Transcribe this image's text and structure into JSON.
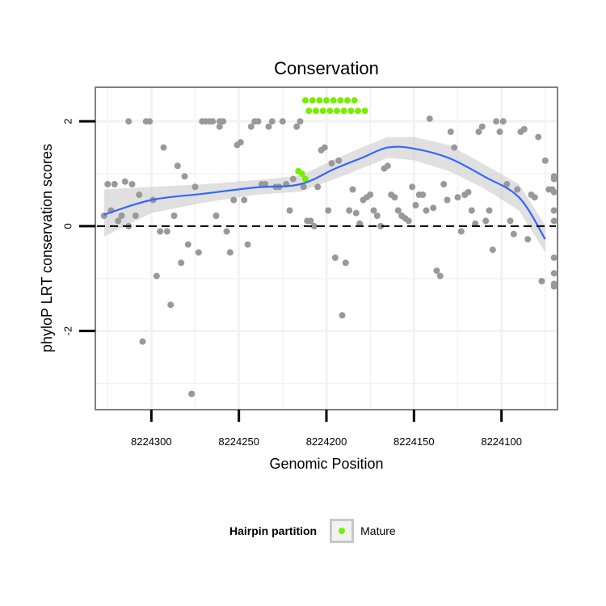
{
  "colors": {
    "points": "#999999",
    "mature": "#77ee00",
    "smooth": "#3366ff",
    "ribbon": "#cccccc",
    "panel_border": "#7f7f7f",
    "grid": "#f2f2f2"
  },
  "chart_data": {
    "type": "scatter",
    "title": "Conservation",
    "xlabel": "Genomic Position",
    "ylabel": "phyloP LRT conservation scores",
    "x_reversed": true,
    "xlim": [
      8224332,
      8224068
    ],
    "ylim": [
      -3.5,
      2.65
    ],
    "x_ticks": [
      8224300,
      8224250,
      8224200,
      8224150,
      8224100
    ],
    "x_tick_labels": [
      "8224300",
      "8224250",
      "8224200",
      "8224150",
      "8224100"
    ],
    "y_ticks": [
      2,
      0,
      -2
    ],
    "y_tick_labels": [
      "2",
      "0",
      "-2"
    ],
    "reference_line": {
      "y": 0,
      "style": "dashed"
    },
    "grid": true,
    "legend_position": "bottom",
    "legend": {
      "title": "Hairpin partition",
      "entries": [
        {
          "label": "Mature",
          "color": "#77ee00"
        }
      ]
    },
    "series": [
      {
        "kind": "points",
        "color": "#999999",
        "points": [
          [
            8224327,
            0.2
          ],
          [
            8224325,
            0.8
          ],
          [
            8224323,
            0.3
          ],
          [
            8224321,
            0.8
          ],
          [
            8224319,
            0.1
          ],
          [
            8224317,
            0.2
          ],
          [
            8224315,
            0.85
          ],
          [
            8224313,
            0.0
          ],
          [
            8224313,
            2.0
          ],
          [
            8224311,
            0.8
          ],
          [
            8224309,
            0.2
          ],
          [
            8224307,
            0.6
          ],
          [
            8224305,
            -2.2
          ],
          [
            8224303,
            2.0
          ],
          [
            8224301,
            2.0
          ],
          [
            8224299,
            0.5
          ],
          [
            8224297,
            -0.95
          ],
          [
            8224295,
            -0.1
          ],
          [
            8224293,
            1.5
          ],
          [
            8224291,
            -0.1
          ],
          [
            8224289,
            -1.5
          ],
          [
            8224287,
            0.2
          ],
          [
            8224285,
            1.15
          ],
          [
            8224283,
            -0.7
          ],
          [
            8224281,
            0.95
          ],
          [
            8224279,
            -0.35
          ],
          [
            8224277,
            -3.2
          ],
          [
            8224275,
            0.75
          ],
          [
            8224273,
            -0.5
          ],
          [
            8224271,
            2.0
          ],
          [
            8224269,
            2.0
          ],
          [
            8224267,
            2.0
          ],
          [
            8224265,
            2.0
          ],
          [
            8224263,
            0.2
          ],
          [
            8224261,
            1.9
          ],
          [
            8224261,
            2.0
          ],
          [
            8224259,
            2.0
          ],
          [
            8224257,
            -0.1
          ],
          [
            8224255,
            -0.5
          ],
          [
            8224253,
            0.5
          ],
          [
            8224251,
            1.55
          ],
          [
            8224249,
            1.6
          ],
          [
            8224247,
            0.5
          ],
          [
            8224245,
            -0.35
          ],
          [
            8224243,
            1.9
          ],
          [
            8224241,
            2.0
          ],
          [
            8224239,
            2.0
          ],
          [
            8224237,
            0.8
          ],
          [
            8224235,
            0.8
          ],
          [
            8224233,
            1.9
          ],
          [
            8224231,
            2.0
          ],
          [
            8224229,
            0.75
          ],
          [
            8224227,
            0.75
          ],
          [
            8224225,
            2.0
          ],
          [
            8224223,
            0.8
          ],
          [
            8224221,
            0.3
          ],
          [
            8224219,
            0.9
          ],
          [
            8224217,
            1.9
          ],
          [
            8224215,
            2.0
          ],
          [
            8224213,
            0.75
          ],
          [
            8224211,
            0.1
          ],
          [
            8224209,
            0.1
          ],
          [
            8224207,
            0.0
          ],
          [
            8224205,
            0.75
          ],
          [
            8224203,
            1.45
          ],
          [
            8224201,
            1.5
          ],
          [
            8224199,
            0.3
          ],
          [
            8224197,
            1.2
          ],
          [
            8224195,
            -0.6
          ],
          [
            8224193,
            1.25
          ],
          [
            8224191,
            -1.7
          ],
          [
            8224189,
            -0.7
          ],
          [
            8224187,
            0.3
          ],
          [
            8224185,
            0.7
          ],
          [
            8224183,
            0.25
          ],
          [
            8224181,
            0.05
          ],
          [
            8224179,
            0.5
          ],
          [
            8224177,
            0.55
          ],
          [
            8224175,
            0.6
          ],
          [
            8224173,
            0.3
          ],
          [
            8224171,
            0.2
          ],
          [
            8224169,
            0.0
          ],
          [
            8224167,
            1.1
          ],
          [
            8224165,
            1.15
          ],
          [
            8224163,
            0.6
          ],
          [
            8224161,
            0.55
          ],
          [
            8224159,
            0.3
          ],
          [
            8224157,
            0.2
          ],
          [
            8224155,
            0.15
          ],
          [
            8224153,
            0.1
          ],
          [
            8224151,
            0.75
          ],
          [
            8224149,
            0.4
          ],
          [
            8224147,
            0.6
          ],
          [
            8224145,
            0.6
          ],
          [
            8224143,
            0.3
          ],
          [
            8224141,
            2.05
          ],
          [
            8224139,
            0.35
          ],
          [
            8224137,
            -0.85
          ],
          [
            8224135,
            -0.95
          ],
          [
            8224133,
            0.8
          ],
          [
            8224131,
            0.5
          ],
          [
            8224129,
            1.8
          ],
          [
            8224127,
            1.5
          ],
          [
            8224125,
            0.55
          ],
          [
            8224123,
            -0.1
          ],
          [
            8224121,
            0.6
          ],
          [
            8224119,
            0.65
          ],
          [
            8224117,
            0.3
          ],
          [
            8224115,
            0.05
          ],
          [
            8224113,
            1.8
          ],
          [
            8224111,
            1.9
          ],
          [
            8224109,
            0.1
          ],
          [
            8224107,
            0.3
          ],
          [
            8224105,
            -0.45
          ],
          [
            8224103,
            2.0
          ],
          [
            8224101,
            1.8
          ],
          [
            8224099,
            2.0
          ],
          [
            8224097,
            0.8
          ],
          [
            8224095,
            0.1
          ],
          [
            8224093,
            -0.15
          ],
          [
            8224091,
            0.7
          ],
          [
            8224089,
            1.8
          ],
          [
            8224087,
            1.85
          ],
          [
            8224085,
            -0.25
          ],
          [
            8224083,
            0.6
          ],
          [
            8224081,
            0.55
          ],
          [
            8224079,
            1.7
          ],
          [
            8224077,
            -1.05
          ],
          [
            8224075,
            1.25
          ],
          [
            8224073,
            0.7
          ],
          [
            8224071,
            0.7
          ],
          [
            8224070,
            -0.6
          ],
          [
            8224070,
            0.95
          ],
          [
            8224070,
            -1.15
          ],
          [
            8224070,
            0.1
          ],
          [
            8224070,
            -0.9
          ],
          [
            8224070,
            -1.1
          ],
          [
            8224070,
            0.9
          ],
          [
            8224070,
            0.3
          ],
          [
            8224070,
            0.65
          ]
        ]
      },
      {
        "kind": "points",
        "name": "Mature",
        "color": "#77ee00",
        "points": [
          [
            8224216,
            1.05
          ],
          [
            8224214,
            1.0
          ],
          [
            8224212,
            0.9
          ],
          [
            8224212,
            2.4
          ],
          [
            8224208,
            2.4
          ],
          [
            8224204,
            2.4
          ],
          [
            8224200,
            2.4
          ],
          [
            8224196,
            2.4
          ],
          [
            8224192,
            2.4
          ],
          [
            8224188,
            2.4
          ],
          [
            8224184,
            2.4
          ],
          [
            8224210,
            2.2
          ],
          [
            8224206,
            2.2
          ],
          [
            8224202,
            2.2
          ],
          [
            8224198,
            2.2
          ],
          [
            8224194,
            2.2
          ],
          [
            8224190,
            2.2
          ],
          [
            8224186,
            2.2
          ],
          [
            8224182,
            2.2
          ],
          [
            8224178,
            2.2
          ]
        ]
      },
      {
        "kind": "smooth",
        "color": "#3366ff",
        "x": [
          8224327,
          8224300,
          8224270,
          8224240,
          8224215,
          8224195,
          8224180,
          8224165,
          8224150,
          8224130,
          8224110,
          8224090,
          8224075
        ],
        "y": [
          0.22,
          0.5,
          0.62,
          0.74,
          0.8,
          1.1,
          1.3,
          1.5,
          1.48,
          1.3,
          0.95,
          0.55,
          -0.25
        ],
        "ribbon_lower": [
          -0.2,
          0.25,
          0.45,
          0.6,
          0.66,
          0.9,
          1.1,
          1.3,
          1.26,
          1.05,
          0.72,
          0.3,
          -0.5
        ],
        "ribbon_upper": [
          0.7,
          0.75,
          0.8,
          0.88,
          0.96,
          1.28,
          1.5,
          1.7,
          1.7,
          1.55,
          1.18,
          0.8,
          0.02
        ]
      }
    ]
  }
}
